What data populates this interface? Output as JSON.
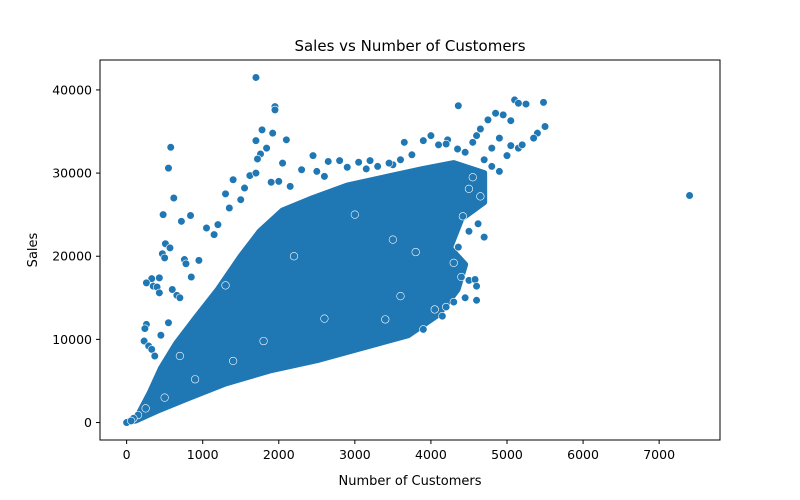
{
  "chart_data": {
    "type": "scatter",
    "title": "Sales vs Number of Customers",
    "xlabel": "Number of Customers",
    "ylabel": "Sales",
    "xlim": [
      -350,
      7800
    ],
    "ylim": [
      -2100,
      43600
    ],
    "xticks": [
      0,
      1000,
      2000,
      3000,
      4000,
      5000,
      6000,
      7000
    ],
    "yticks": [
      0,
      10000,
      20000,
      30000,
      40000
    ],
    "grid": false,
    "marker_color": "#1f77b4",
    "marker_edge_color": "#ffffff",
    "dense_region": {
      "description_free_polygon": [
        [
          0,
          0
        ],
        [
          150,
          900
        ],
        [
          300,
          3500
        ],
        [
          450,
          6500
        ],
        [
          650,
          9500
        ],
        [
          900,
          12500
        ],
        [
          1200,
          16000
        ],
        [
          1500,
          20000
        ],
        [
          1750,
          23000
        ],
        [
          2050,
          25500
        ],
        [
          2450,
          27000
        ],
        [
          2900,
          28500
        ],
        [
          3400,
          29500
        ],
        [
          3900,
          30500
        ],
        [
          4300,
          31200
        ],
        [
          4700,
          30000
        ],
        [
          4700,
          26500
        ],
        [
          4400,
          24500
        ],
        [
          4250,
          21000
        ],
        [
          4450,
          19000
        ],
        [
          4350,
          16000
        ],
        [
          4100,
          13000
        ],
        [
          3700,
          10500
        ],
        [
          3100,
          9000
        ],
        [
          2500,
          7500
        ],
        [
          1900,
          6300
        ],
        [
          1300,
          4700
        ],
        [
          800,
          2900
        ],
        [
          400,
          1400
        ],
        [
          120,
          250
        ]
      ]
    },
    "points": [
      [
        0,
        0
      ],
      [
        1700,
        41500
      ],
      [
        1950,
        38000
      ],
      [
        1950,
        37600
      ],
      [
        1920,
        34800
      ],
      [
        1780,
        35200
      ],
      [
        1700,
        33900
      ],
      [
        1760,
        32300
      ],
      [
        1720,
        31700
      ],
      [
        1840,
        33000
      ],
      [
        2100,
        34000
      ],
      [
        2050,
        31200
      ],
      [
        2450,
        32100
      ],
      [
        2800,
        31500
      ],
      [
        3050,
        31300
      ],
      [
        3200,
        31500
      ],
      [
        3500,
        31000
      ],
      [
        3650,
        33700
      ],
      [
        3900,
        33900
      ],
      [
        4000,
        34500
      ],
      [
        4220,
        34000
      ],
      [
        4360,
        38100
      ],
      [
        4350,
        32900
      ],
      [
        4450,
        32500
      ],
      [
        4550,
        33700
      ],
      [
        4600,
        34500
      ],
      [
        4650,
        35300
      ],
      [
        4750,
        36400
      ],
      [
        4850,
        37200
      ],
      [
        4950,
        37000
      ],
      [
        5050,
        36300
      ],
      [
        5100,
        38800
      ],
      [
        5150,
        38400
      ],
      [
        5250,
        38300
      ],
      [
        5480,
        38500
      ],
      [
        5400,
        34800
      ],
      [
        5500,
        35600
      ],
      [
        5350,
        34200
      ],
      [
        5050,
        33300
      ],
      [
        5000,
        32100
      ],
      [
        5150,
        33000
      ],
      [
        5200,
        33400
      ],
      [
        4900,
        34200
      ],
      [
        4800,
        33000
      ],
      [
        4700,
        31600
      ],
      [
        4800,
        30800
      ],
      [
        4900,
        30200
      ],
      [
        4550,
        29500
      ],
      [
        4500,
        28100
      ],
      [
        4650,
        27200
      ],
      [
        4700,
        22300
      ],
      [
        4620,
        23900
      ],
      [
        4500,
        23000
      ],
      [
        4420,
        24800
      ],
      [
        4360,
        21100
      ],
      [
        4300,
        19200
      ],
      [
        4400,
        17500
      ],
      [
        4500,
        17100
      ],
      [
        4580,
        17200
      ],
      [
        4600,
        16400
      ],
      [
        4600,
        14700
      ],
      [
        4450,
        15000
      ],
      [
        4300,
        14500
      ],
      [
        4200,
        13900
      ],
      [
        4150,
        12800
      ],
      [
        4050,
        13600
      ],
      [
        3900,
        11200
      ],
      [
        3400,
        12400
      ],
      [
        7400,
        27300
      ],
      [
        580,
        33100
      ],
      [
        550,
        30600
      ],
      [
        620,
        27000
      ],
      [
        480,
        25000
      ],
      [
        720,
        24200
      ],
      [
        840,
        24900
      ],
      [
        510,
        21500
      ],
      [
        570,
        21000
      ],
      [
        470,
        20300
      ],
      [
        760,
        19600
      ],
      [
        780,
        19100
      ],
      [
        500,
        19800
      ],
      [
        430,
        17400
      ],
      [
        330,
        17300
      ],
      [
        260,
        16800
      ],
      [
        350,
        16400
      ],
      [
        400,
        16300
      ],
      [
        600,
        16000
      ],
      [
        660,
        15300
      ],
      [
        430,
        15600
      ],
      [
        260,
        11800
      ],
      [
        240,
        11300
      ],
      [
        230,
        9800
      ],
      [
        290,
        9200
      ],
      [
        330,
        8800
      ],
      [
        370,
        8000
      ],
      [
        1050,
        23400
      ],
      [
        1200,
        23800
      ],
      [
        1300,
        27500
      ],
      [
        1400,
        29200
      ],
      [
        1550,
        28200
      ],
      [
        1620,
        29700
      ],
      [
        1700,
        30000
      ],
      [
        1900,
        28900
      ],
      [
        2000,
        29000
      ],
      [
        2150,
        28400
      ],
      [
        2300,
        30400
      ],
      [
        2500,
        30200
      ],
      [
        2600,
        29600
      ],
      [
        2650,
        31400
      ],
      [
        2900,
        30700
      ],
      [
        3150,
        30500
      ],
      [
        3300,
        30800
      ],
      [
        3450,
        31200
      ],
      [
        3600,
        31600
      ],
      [
        3750,
        32200
      ],
      [
        4100,
        33400
      ],
      [
        4200,
        33500
      ],
      [
        1500,
        26800
      ],
      [
        1350,
        25800
      ],
      [
        1150,
        22600
      ],
      [
        950,
        19500
      ],
      [
        850,
        17500
      ],
      [
        700,
        15000
      ],
      [
        550,
        12000
      ],
      [
        450,
        10500
      ],
      [
        700,
        8000
      ],
      [
        1300,
        16500
      ],
      [
        2200,
        20000
      ],
      [
        3000,
        25000
      ],
      [
        3500,
        22000
      ],
      [
        3800,
        20500
      ],
      [
        3600,
        15200
      ],
      [
        2600,
        12500
      ],
      [
        1800,
        9800
      ],
      [
        1400,
        7400
      ],
      [
        900,
        5200
      ],
      [
        500,
        3000
      ],
      [
        250,
        1700
      ],
      [
        150,
        900
      ],
      [
        90,
        500
      ],
      [
        60,
        200
      ]
    ]
  }
}
